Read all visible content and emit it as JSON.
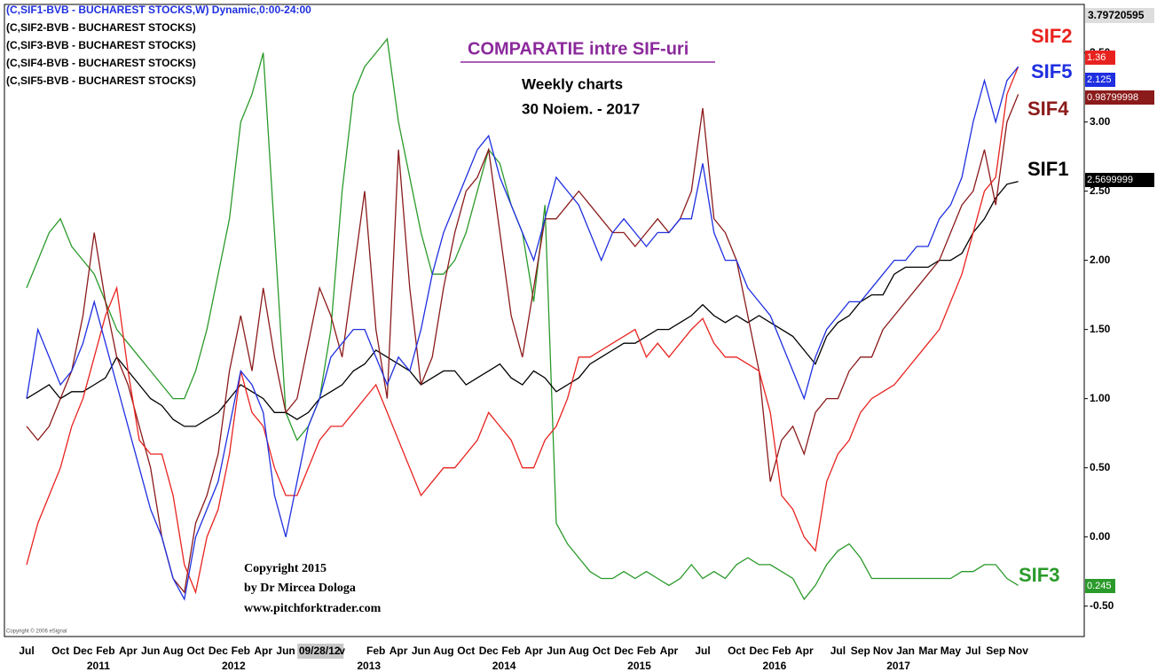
{
  "chart_data": {
    "type": "line",
    "title": "COMPARATIE intre SIF-uri",
    "subtitle_lines": [
      "Weekly charts",
      "30 Noiem. - 2017"
    ],
    "header_lines": [
      "(C,SIF1-BVB - BUCHAREST STOCKS,W) Dynamic,0:00-24:00",
      "(C,SIF2-BVB - BUCHAREST STOCKS)",
      "(C,SIF3-BVB - BUCHAREST STOCKS)",
      "(C,SIF4-BVB - BUCHAREST STOCKS)",
      "(C,SIF5-BVB - BUCHAREST STOCKS)"
    ],
    "copyright_lines": [
      "Copyright 2015",
      "by Dr Mircea Dologa",
      "www.pitchforktrader.com"
    ],
    "source_note": "Copyright © 2006 eSignal",
    "axis_top_label": "3.79720595",
    "categories": [
      "Jul",
      null,
      null,
      "Oct",
      null,
      "Dec",
      null,
      "Feb",
      null,
      "Apr",
      null,
      "Jun",
      null,
      "Aug",
      null,
      "Oct",
      null,
      "Dec",
      null,
      "Feb",
      null,
      "Apr",
      null,
      "Jun",
      null,
      null,
      "09/28/12",
      null,
      "v",
      null,
      null,
      "Feb",
      null,
      "Apr",
      null,
      "Jun",
      null,
      "Aug",
      null,
      "Oct",
      null,
      "Dec",
      null,
      "Feb",
      null,
      "Apr",
      null,
      "Jun",
      null,
      "Aug",
      null,
      "Oct",
      null,
      "Dec",
      null,
      "Feb",
      null,
      "Apr",
      null,
      null,
      "Jul",
      null,
      null,
      "Oct",
      null,
      "Dec",
      null,
      "Feb",
      null,
      "Apr",
      null,
      null,
      "Jul",
      null,
      "Sep",
      null,
      "Nov",
      null,
      "Jan",
      null,
      "Mar",
      null,
      "May",
      null,
      "Jul",
      null,
      "Sep",
      null,
      "Nov"
    ],
    "category_years": [
      null,
      null,
      null,
      null,
      null,
      null,
      null,
      "2011",
      null,
      null,
      null,
      null,
      null,
      null,
      null,
      null,
      null,
      null,
      null,
      "2012",
      null,
      null,
      null,
      null,
      null,
      null,
      null,
      null,
      null,
      null,
      null,
      "2013",
      null,
      null,
      null,
      null,
      null,
      null,
      null,
      null,
      null,
      null,
      null,
      "2014",
      null,
      null,
      null,
      null,
      null,
      null,
      null,
      null,
      null,
      null,
      null,
      "2015",
      null,
      null,
      null,
      null,
      null,
      null,
      null,
      null,
      null,
      null,
      null,
      "2016",
      null,
      null,
      null,
      null,
      null,
      null,
      null,
      null,
      null,
      null,
      "2017",
      null,
      null,
      null,
      null,
      null,
      null,
      null,
      null,
      null,
      null
    ],
    "series": [
      {
        "name": "SIF1",
        "color": "#000000",
        "last_label": "2.5699999",
        "values": [
          1.0,
          1.05,
          1.1,
          1.0,
          1.05,
          1.05,
          1.1,
          1.15,
          1.3,
          1.2,
          1.1,
          1.0,
          0.95,
          0.85,
          0.8,
          0.8,
          0.85,
          0.9,
          1.0,
          1.1,
          1.05,
          1.0,
          0.9,
          0.9,
          0.85,
          0.9,
          1.0,
          1.05,
          1.1,
          1.2,
          1.25,
          1.35,
          1.3,
          1.25,
          1.2,
          1.1,
          1.15,
          1.2,
          1.2,
          1.1,
          1.15,
          1.2,
          1.25,
          1.15,
          1.1,
          1.2,
          1.15,
          1.05,
          1.1,
          1.15,
          1.25,
          1.3,
          1.35,
          1.4,
          1.4,
          1.45,
          1.5,
          1.5,
          1.55,
          1.6,
          1.68,
          1.6,
          1.55,
          1.6,
          1.55,
          1.6,
          1.55,
          1.5,
          1.45,
          1.35,
          1.25,
          1.45,
          1.55,
          1.6,
          1.7,
          1.75,
          1.75,
          1.9,
          1.95,
          1.95,
          1.95,
          2.0,
          2.0,
          2.05,
          2.2,
          2.3,
          2.45,
          2.55,
          2.57
        ]
      },
      {
        "name": "SIF2",
        "color": "#e8231f",
        "last_label": "1.36",
        "values": [
          -0.2,
          0.1,
          0.3,
          0.5,
          0.8,
          1.0,
          1.3,
          1.6,
          1.8,
          1.2,
          0.7,
          0.6,
          0.6,
          0.3,
          -0.2,
          -0.4,
          0.0,
          0.2,
          0.6,
          1.2,
          0.9,
          0.8,
          0.5,
          0.3,
          0.3,
          0.5,
          0.7,
          0.8,
          0.8,
          0.9,
          1.0,
          1.1,
          0.9,
          0.7,
          0.5,
          0.3,
          0.4,
          0.5,
          0.5,
          0.6,
          0.7,
          0.9,
          0.8,
          0.7,
          0.5,
          0.5,
          0.7,
          0.8,
          1.0,
          1.3,
          1.3,
          1.35,
          1.4,
          1.45,
          1.5,
          1.3,
          1.4,
          1.3,
          1.4,
          1.5,
          1.58,
          1.4,
          1.3,
          1.3,
          1.25,
          1.2,
          0.9,
          0.3,
          0.2,
          0.0,
          -0.1,
          0.4,
          0.6,
          0.7,
          0.9,
          1.0,
          1.05,
          1.1,
          1.2,
          1.3,
          1.4,
          1.5,
          1.7,
          1.9,
          2.2,
          2.5,
          2.6,
          3.2,
          3.4
        ]
      },
      {
        "name": "SIF3",
        "color": "#2a9a2a",
        "last_label": "0.245",
        "values": [
          1.8,
          2.0,
          2.2,
          2.3,
          2.1,
          2.0,
          1.9,
          1.7,
          1.5,
          1.4,
          1.3,
          1.2,
          1.1,
          1.0,
          1.0,
          1.2,
          1.5,
          1.9,
          2.3,
          3.0,
          3.2,
          3.5,
          2.2,
          0.9,
          0.7,
          0.8,
          1.0,
          1.5,
          2.5,
          3.2,
          3.4,
          3.5,
          3.6,
          3.0,
          2.6,
          2.2,
          1.9,
          1.9,
          2.0,
          2.2,
          2.5,
          2.8,
          2.7,
          2.4,
          2.2,
          1.7,
          2.4,
          0.1,
          -0.05,
          -0.15,
          -0.25,
          -0.3,
          -0.3,
          -0.25,
          -0.3,
          -0.25,
          -0.3,
          -0.35,
          -0.3,
          -0.2,
          -0.3,
          -0.25,
          -0.3,
          -0.2,
          -0.15,
          -0.2,
          -0.2,
          -0.25,
          -0.3,
          -0.45,
          -0.35,
          -0.2,
          -0.1,
          -0.05,
          -0.15,
          -0.3,
          -0.3,
          -0.3,
          -0.3,
          -0.3,
          -0.3,
          -0.3,
          -0.3,
          -0.25,
          -0.25,
          -0.2,
          -0.2,
          -0.3,
          -0.35
        ]
      },
      {
        "name": "SIF4",
        "color": "#8b1a1a",
        "last_label": "0.98799998",
        "values": [
          0.8,
          0.7,
          0.8,
          1.0,
          1.2,
          1.6,
          2.2,
          1.7,
          1.3,
          1.1,
          0.8,
          0.5,
          0.0,
          -0.3,
          -0.4,
          0.1,
          0.3,
          0.6,
          1.2,
          1.6,
          1.2,
          1.8,
          1.3,
          0.9,
          1.0,
          1.4,
          1.8,
          1.6,
          1.3,
          1.9,
          2.5,
          1.5,
          1.0,
          2.8,
          1.8,
          1.1,
          1.3,
          1.8,
          2.2,
          2.5,
          2.6,
          2.8,
          2.2,
          1.6,
          1.3,
          1.8,
          2.3,
          2.3,
          2.4,
          2.5,
          2.4,
          2.3,
          2.2,
          2.2,
          2.1,
          2.2,
          2.3,
          2.2,
          2.3,
          2.5,
          3.1,
          2.3,
          2.2,
          2.0,
          1.6,
          1.2,
          0.4,
          0.7,
          0.8,
          0.6,
          0.9,
          1.0,
          1.0,
          1.2,
          1.3,
          1.3,
          1.5,
          1.6,
          1.7,
          1.8,
          1.9,
          2.0,
          2.2,
          2.4,
          2.5,
          2.8,
          2.4,
          3.0,
          3.2
        ]
      },
      {
        "name": "SIF5",
        "color": "#1f2fe0",
        "last_label": "2.125",
        "values": [
          1.0,
          1.5,
          1.3,
          1.1,
          1.2,
          1.4,
          1.7,
          1.4,
          1.1,
          0.8,
          0.5,
          0.2,
          0.0,
          -0.3,
          -0.45,
          0.0,
          0.2,
          0.4,
          0.8,
          1.2,
          1.1,
          0.9,
          0.3,
          0.0,
          0.4,
          0.8,
          1.0,
          1.3,
          1.4,
          1.5,
          1.5,
          1.3,
          1.1,
          1.3,
          1.2,
          1.5,
          1.9,
          2.2,
          2.4,
          2.6,
          2.8,
          2.9,
          2.6,
          2.4,
          2.2,
          2.0,
          2.3,
          2.6,
          2.5,
          2.4,
          2.2,
          2.0,
          2.2,
          2.3,
          2.2,
          2.1,
          2.2,
          2.2,
          2.3,
          2.3,
          2.7,
          2.2,
          2.0,
          2.0,
          1.8,
          1.7,
          1.6,
          1.4,
          1.2,
          1.0,
          1.3,
          1.5,
          1.6,
          1.7,
          1.7,
          1.8,
          1.9,
          2.0,
          2.0,
          2.1,
          2.1,
          2.3,
          2.4,
          2.6,
          3.0,
          3.3,
          3.0,
          3.3,
          3.4
        ]
      }
    ],
    "ylim": [
      -0.72,
      3.85
    ],
    "yticks": [
      {
        "value": -0.5,
        "label": "-0.50"
      },
      {
        "value": 0,
        "label": "0.00"
      },
      {
        "value": 0.5,
        "label": "0.50"
      },
      {
        "value": 1,
        "label": "1.00"
      },
      {
        "value": 1.5,
        "label": "1.50"
      },
      {
        "value": 2,
        "label": "2.00"
      },
      {
        "value": 2.5,
        "label": "2.50"
      },
      {
        "value": 3,
        "label": "3.00"
      },
      {
        "value": 3.5,
        "label": "3.50"
      }
    ],
    "grid": false
  }
}
